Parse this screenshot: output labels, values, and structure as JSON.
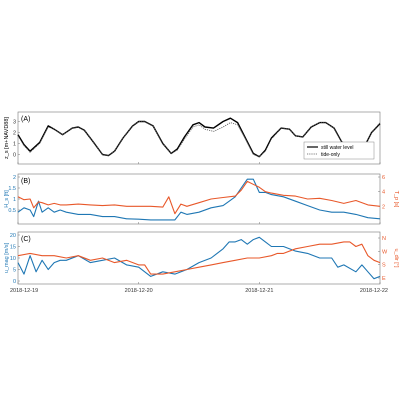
{
  "chart_data": [
    {
      "panel_label": "(A)",
      "type": "line",
      "ylabel": "z_s [m+NAVD88]",
      "ylim": [
        -0.5,
        3.5
      ],
      "yticks": [
        "0",
        "1",
        "2",
        "3"
      ],
      "x_start": "2018-12-19",
      "x_end": "2018-12-22",
      "grid": false,
      "legend": "bottom-right",
      "series": [
        {
          "name": "still water level",
          "color": "#000000",
          "style": "solid",
          "x": [
            0,
            0.05,
            0.1,
            0.18,
            0.25,
            0.3,
            0.37,
            0.45,
            0.5,
            0.55,
            0.62,
            0.7,
            0.75,
            0.8,
            0.87,
            0.95,
            1.0,
            1.05,
            1.12,
            1.2,
            1.27,
            1.32,
            1.38,
            1.45,
            1.5,
            1.55,
            1.62,
            1.7,
            1.76,
            1.82,
            1.88,
            1.95,
            2.0,
            2.05,
            2.1,
            2.18,
            2.25,
            2.3,
            2.36,
            2.43,
            2.5,
            2.55,
            2.62,
            2.68,
            2.75,
            2.8,
            2.87,
            2.93,
            3.0
          ],
          "y": [
            1.8,
            0.9,
            0.3,
            1.1,
            2.6,
            2.3,
            1.8,
            2.4,
            2.5,
            2.2,
            1.2,
            0.0,
            -0.1,
            0.3,
            1.5,
            2.6,
            3.0,
            3.0,
            2.6,
            1.0,
            0.1,
            0.5,
            1.6,
            2.7,
            2.9,
            2.5,
            2.4,
            3.0,
            3.3,
            2.9,
            1.6,
            0.1,
            -0.2,
            0.4,
            1.5,
            2.4,
            2.3,
            1.7,
            1.6,
            2.5,
            2.9,
            2.9,
            2.4,
            1.2,
            0.2,
            -0.1,
            0.7,
            2.0,
            2.8
          ]
        },
        {
          "name": "tide-only",
          "color": "#555555",
          "style": "dotted",
          "x": [
            0,
            0.05,
            0.1,
            0.18,
            0.25,
            0.3,
            0.37,
            0.45,
            0.5,
            0.55,
            0.62,
            0.7,
            0.75,
            0.8,
            0.87,
            0.95,
            1.0,
            1.05,
            1.12,
            1.2,
            1.27,
            1.32,
            1.38,
            1.45,
            1.5,
            1.55,
            1.62,
            1.7,
            1.76,
            1.82,
            1.88,
            1.95,
            2.0,
            2.05,
            2.1,
            2.18,
            2.25,
            2.3,
            2.36,
            2.43,
            2.5,
            2.55,
            2.62,
            2.68,
            2.75,
            2.8,
            2.87,
            2.93,
            3.0
          ],
          "y": [
            1.7,
            0.8,
            0.2,
            1.0,
            2.5,
            2.3,
            1.8,
            2.4,
            2.5,
            2.2,
            1.2,
            0.0,
            -0.1,
            0.3,
            1.5,
            2.6,
            3.0,
            3.0,
            2.6,
            1.0,
            0.1,
            0.4,
            1.4,
            2.5,
            2.7,
            2.3,
            2.1,
            2.5,
            2.9,
            2.7,
            1.5,
            0.0,
            -0.2,
            0.3,
            1.4,
            2.4,
            2.3,
            1.7,
            1.6,
            2.5,
            2.9,
            2.9,
            2.4,
            1.2,
            0.2,
            -0.1,
            0.7,
            2.0,
            2.9
          ]
        }
      ]
    },
    {
      "panel_label": "(B)",
      "type": "line",
      "ylabel": "H_s [ft]",
      "ylabel_right": "T_p [s]",
      "ylim": [
        0,
        2
      ],
      "yticks": [
        "0.5",
        "1",
        "1.5",
        "2"
      ],
      "ylim_right": [
        0,
        6
      ],
      "yticks_right": [
        "2",
        "4",
        "6"
      ],
      "x_start": "2018-12-19",
      "x_end": "2018-12-22",
      "grid": false,
      "series": [
        {
          "name": "H_s",
          "axis": "left",
          "color": "#1f77b4",
          "x": [
            0,
            0.05,
            0.1,
            0.13,
            0.17,
            0.2,
            0.25,
            0.3,
            0.35,
            0.4,
            0.5,
            0.6,
            0.7,
            0.8,
            0.9,
            1.0,
            1.1,
            1.2,
            1.3,
            1.35,
            1.4,
            1.5,
            1.6,
            1.7,
            1.75,
            1.8,
            1.85,
            1.9,
            1.95,
            2.0,
            2.05,
            2.1,
            2.2,
            2.3,
            2.4,
            2.5,
            2.6,
            2.7,
            2.8,
            2.9,
            3.0
          ],
          "y": [
            0.4,
            0.6,
            0.5,
            0.2,
            0.9,
            0.4,
            0.6,
            0.4,
            0.5,
            0.4,
            0.3,
            0.3,
            0.2,
            0.2,
            0.1,
            0.08,
            0.05,
            0.05,
            0.05,
            0.4,
            0.3,
            0.4,
            0.6,
            0.7,
            0.9,
            1.1,
            1.5,
            1.9,
            1.9,
            1.3,
            1.3,
            1.2,
            1.1,
            0.9,
            0.7,
            0.5,
            0.4,
            0.4,
            0.3,
            0.15,
            0.1
          ]
        },
        {
          "name": "T_p",
          "axis": "right",
          "color": "#e8582a",
          "x": [
            0,
            0.05,
            0.1,
            0.13,
            0.17,
            0.2,
            0.25,
            0.3,
            0.35,
            0.4,
            0.5,
            0.6,
            0.7,
            0.8,
            0.9,
            1.0,
            1.1,
            1.2,
            1.25,
            1.3,
            1.35,
            1.4,
            1.5,
            1.6,
            1.7,
            1.8,
            1.85,
            1.9,
            2.0,
            2.05,
            2.1,
            2.2,
            2.3,
            2.4,
            2.5,
            2.6,
            2.7,
            2.8,
            2.9,
            3.0
          ],
          "y": [
            3.3,
            2.9,
            3.0,
            1.8,
            2.6,
            2.5,
            2.2,
            2.4,
            2.2,
            2.2,
            2.3,
            2.2,
            2.1,
            2.2,
            2.0,
            2.0,
            2.0,
            1.9,
            3.3,
            1.0,
            2.3,
            2.0,
            2.5,
            3.0,
            3.2,
            3.4,
            4.2,
            5.4,
            4.6,
            4.0,
            3.8,
            3.5,
            3.4,
            3.0,
            3.1,
            2.8,
            2.4,
            2.8,
            2.2,
            2.0
          ]
        }
      ]
    },
    {
      "panel_label": "(C)",
      "type": "line",
      "ylabel": "u_mag [m/s]",
      "ylabel_right": "u_dir [°]",
      "ylim": [
        0,
        20
      ],
      "yticks": [
        "0",
        "5",
        "10",
        "15",
        "20"
      ],
      "yticks_right": [
        "N",
        "W",
        "S",
        "E"
      ],
      "x_start": "2018-12-19",
      "x_end": "2018-12-22",
      "xticks": [
        "2018-12-19",
        "2018-12-20",
        "2018-12-21",
        "2018-12-22"
      ],
      "grid": false,
      "series": [
        {
          "name": "u_mag",
          "axis": "left",
          "color": "#1f77b4",
          "x": [
            0,
            0.05,
            0.1,
            0.15,
            0.2,
            0.25,
            0.3,
            0.35,
            0.4,
            0.5,
            0.6,
            0.7,
            0.8,
            0.9,
            1.0,
            1.1,
            1.2,
            1.3,
            1.4,
            1.5,
            1.6,
            1.7,
            1.75,
            1.8,
            1.85,
            1.9,
            1.95,
            2.0,
            2.05,
            2.1,
            2.15,
            2.2,
            2.3,
            2.4,
            2.5,
            2.6,
            2.65,
            2.7,
            2.8,
            2.85,
            2.9,
            2.95,
            3.0
          ],
          "y": [
            8,
            3,
            11,
            4,
            9,
            5,
            8,
            9,
            9,
            11,
            8,
            9,
            10,
            7,
            6,
            2,
            4,
            3,
            5,
            8,
            10,
            14,
            17,
            17,
            18,
            16,
            18,
            19,
            17,
            15,
            15,
            15,
            13,
            12,
            10,
            10,
            6,
            7,
            4,
            7,
            4,
            1,
            2
          ]
        },
        {
          "name": "u_dir",
          "axis": "right",
          "color": "#e8582a",
          "x": [
            0,
            0.1,
            0.2,
            0.3,
            0.4,
            0.5,
            0.6,
            0.7,
            0.8,
            0.9,
            1.0,
            1.05,
            1.1,
            1.2,
            1.3,
            1.4,
            1.5,
            1.6,
            1.7,
            1.8,
            1.9,
            2.0,
            2.1,
            2.15,
            2.2,
            2.3,
            2.4,
            2.5,
            2.6,
            2.7,
            2.75,
            2.8,
            2.85,
            2.9,
            2.95,
            3.0
          ],
          "y": [
            11,
            12,
            11,
            11,
            10,
            11,
            9,
            10,
            8,
            9,
            7,
            7,
            3,
            3,
            4,
            5,
            6,
            7,
            8,
            9,
            10,
            10,
            11,
            12,
            12,
            14,
            15,
            16,
            16,
            17,
            17,
            15,
            16,
            11,
            9,
            8
          ]
        }
      ]
    }
  ]
}
